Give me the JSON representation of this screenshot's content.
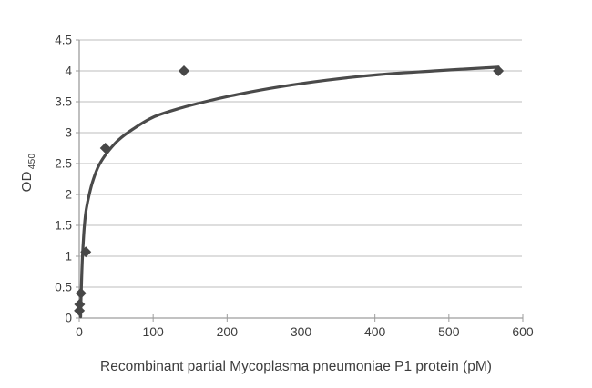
{
  "chart_data": {
    "type": "scatter",
    "title": "",
    "xlabel": "Recombinant partial Mycoplasma pneumoniae P1 protein (pM)",
    "ylabel_main": "OD",
    "ylabel_sub": "450",
    "xlim": [
      0,
      600
    ],
    "ylim": [
      0,
      4.5
    ],
    "x_ticks": [
      0,
      100,
      200,
      300,
      400,
      500,
      600
    ],
    "y_ticks": [
      0,
      0.5,
      1,
      1.5,
      2,
      2.5,
      3,
      3.5,
      4,
      4.5
    ],
    "grid": "horizontal-major",
    "legend": "none",
    "series": [
      {
        "name": "standard-points",
        "marker": "diamond",
        "points": [
          {
            "x": 0.14,
            "y": 0.12
          },
          {
            "x": 0.55,
            "y": 0.22
          },
          {
            "x": 2.2,
            "y": 0.4
          },
          {
            "x": 8.9,
            "y": 1.07
          },
          {
            "x": 35.4,
            "y": 2.75
          },
          {
            "x": 141.7,
            "y": 4.0
          },
          {
            "x": 566.9,
            "y": 4.0
          }
        ]
      },
      {
        "name": "fitted-curve",
        "marker": "none",
        "curve_points": [
          [
            1.9,
            0.02
          ],
          [
            2.4,
            0.28
          ],
          [
            3.1,
            0.58
          ],
          [
            4.1,
            0.92
          ],
          [
            5.4,
            1.22
          ],
          [
            7,
            1.5
          ],
          [
            9.5,
            1.76
          ],
          [
            13.5,
            2.0
          ],
          [
            19,
            2.24
          ],
          [
            27,
            2.48
          ],
          [
            38,
            2.68
          ],
          [
            53,
            2.88
          ],
          [
            73,
            3.06
          ],
          [
            100,
            3.25
          ],
          [
            132,
            3.38
          ],
          [
            170,
            3.5
          ],
          [
            215,
            3.62
          ],
          [
            270,
            3.74
          ],
          [
            335,
            3.85
          ],
          [
            405,
            3.94
          ],
          [
            480,
            4.0
          ],
          [
            566.9,
            4.06
          ]
        ]
      }
    ],
    "colors": {
      "curve": "#4a4a4a",
      "marker": "#474747",
      "gridline": "#bdbdbd",
      "axis": "#9d9d9d",
      "text": "#3d3d3d",
      "background": "#ffffff"
    }
  }
}
